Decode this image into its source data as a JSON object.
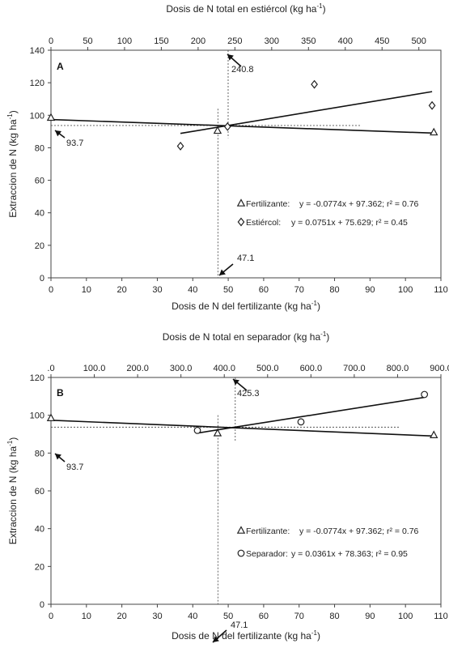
{
  "chart_data": [
    {
      "type": "scatter",
      "panel": "A",
      "x_top_label": "Dosis de N total en estiércol (kg ha",
      "x_top_unit_sup": "-1",
      "x_top_unit_close": ")",
      "x_bottom_label": "Dosis de N del fertilizante  (kg ha",
      "x_bottom_unit_sup": "-1",
      "x_bottom_unit_close": ")",
      "ylabel": "Extraccion de N  (kg ha",
      "ylabel_sup": "-1",
      "ylabel_close": ")",
      "xlim_bottom": [
        0,
        110
      ],
      "xlim_top": [
        0,
        530
      ],
      "ylim": [
        0,
        140
      ],
      "x_bottom_ticks": [
        "0",
        "10",
        "20",
        "30",
        "40",
        "50",
        "60",
        "70",
        "80",
        "90",
        "100",
        "110"
      ],
      "x_top_ticks": [
        "0",
        "50",
        "100",
        "150",
        "200",
        "250",
        "300",
        "350",
        "400",
        "450",
        "500"
      ],
      "y_ticks": [
        "0",
        "20",
        "40",
        "60",
        "80",
        "100",
        "120",
        "140"
      ],
      "series": [
        {
          "name": "Fertilizante",
          "marker": "triangle",
          "axis": "bottom",
          "x": [
            0,
            47,
            108
          ],
          "y": [
            98.5,
            90.5,
            89.5
          ],
          "fit": {
            "slope": -0.0774,
            "intercept": 97.362,
            "x_range": [
              0,
              108
            ]
          }
        },
        {
          "name": "Estiércol",
          "marker": "diamond",
          "axis": "top",
          "x": [
            176,
            240,
            358,
            518
          ],
          "y": [
            81,
            93,
            119,
            106
          ],
          "fit": {
            "slope": 0.0751,
            "intercept": 75.629,
            "x_range": [
              176,
              518
            ]
          }
        }
      ],
      "legend": [
        {
          "marker": "triangle",
          "name": "Fertilizante:",
          "equation": "y = -0.0774x + 97.362; r² = 0.76"
        },
        {
          "marker": "diamond",
          "name": "Estiércol:",
          "equation": "y = 0.0751x + 75.629; r² = 0.45"
        }
      ],
      "annotations": {
        "y_value_label": "93.7",
        "x_bottom_value_label": "47.1",
        "x_top_value_label": "240.8",
        "y_value": 93.7,
        "x_bottom_value": 47.1,
        "x_top_value": 240.8
      }
    },
    {
      "type": "scatter",
      "panel": "B",
      "x_top_label": "Dosis de N total en separador (kg ha",
      "x_top_unit_sup": "-1",
      "x_top_unit_close": ")",
      "x_bottom_label": "Dosis de N del fertilizante (kg ha",
      "x_bottom_unit_sup": "-1",
      "x_bottom_unit_close": ")",
      "ylabel": "Extraccion de N (kg ha",
      "ylabel_sup": "-1",
      "ylabel_close": ")",
      "xlim_bottom": [
        0,
        110
      ],
      "xlim_top": [
        0,
        900
      ],
      "ylim": [
        0,
        120
      ],
      "x_bottom_ticks": [
        "0",
        "10",
        "20",
        "30",
        "40",
        "50",
        "60",
        "70",
        "80",
        "90",
        "100",
        "110"
      ],
      "x_top_ticks": [
        ".0",
        "100.0",
        "200.0",
        "300.0",
        "400.0",
        "500.0",
        "600.0",
        "700.0",
        "800.0",
        "900.0"
      ],
      "y_ticks": [
        "0",
        "20",
        "40",
        "60",
        "80",
        "100",
        "120"
      ],
      "series": [
        {
          "name": "Fertilizante",
          "marker": "triangle",
          "axis": "bottom",
          "x": [
            0,
            47,
            108
          ],
          "y": [
            98.5,
            90.5,
            89.5
          ],
          "fit": {
            "slope": -0.0774,
            "intercept": 97.362,
            "x_range": [
              0,
              108
            ]
          }
        },
        {
          "name": "Separador",
          "marker": "circle",
          "axis": "top",
          "x": [
            338,
            577,
            862
          ],
          "y": [
            92,
            96.5,
            111
          ],
          "fit": {
            "slope": 0.0361,
            "intercept": 78.363,
            "x_range": [
              338,
              862
            ]
          }
        }
      ],
      "legend": [
        {
          "marker": "triangle",
          "name": "Fertilizante:",
          "equation": "y = -0.0774x + 97.362; r² = 0.76"
        },
        {
          "marker": "circle",
          "name": "Separador:",
          "equation": "y = 0.0361x + 78.363; r² = 0.95"
        }
      ],
      "annotations": {
        "y_value_label": "93.7",
        "x_bottom_value_label": "47.1",
        "x_top_value_label": "425.3",
        "y_value": 93.7,
        "x_bottom_value": 47.1,
        "x_top_value": 425.3
      }
    }
  ]
}
